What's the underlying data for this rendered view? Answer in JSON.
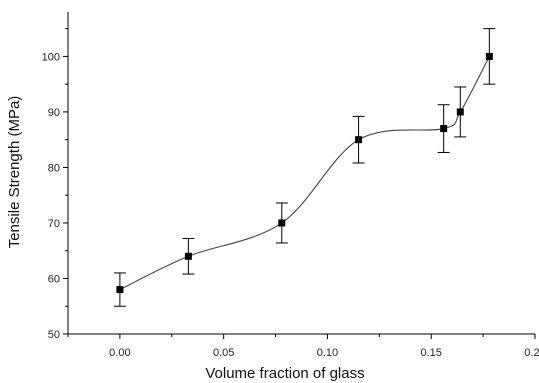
{
  "chart_data": {
    "type": "scatter",
    "title": "",
    "xlabel": "Volume fraction of glass",
    "ylabel": "Tensile Strength (MPa)",
    "xlim": [
      -0.025,
      0.2
    ],
    "ylim": [
      50,
      108
    ],
    "x_ticks": [
      0.0,
      0.05,
      0.1,
      0.15,
      0.2
    ],
    "x_tick_labels": [
      "0.00",
      "0.05",
      "0.10",
      "0.15",
      "0.20"
    ],
    "y_ticks": [
      50,
      60,
      70,
      80,
      90,
      100
    ],
    "y_tick_labels": [
      "50",
      "60",
      "70",
      "80",
      "90",
      "100"
    ],
    "grid": false,
    "smooth_line": true,
    "series": [
      {
        "x": [
          0.0,
          0.033,
          0.078,
          0.115,
          0.156,
          0.164,
          0.178
        ],
        "y": [
          58,
          64,
          70,
          85,
          87,
          90,
          100
        ],
        "error": [
          3,
          3.2,
          3.6,
          4.2,
          4.3,
          4.5,
          5
        ]
      }
    ],
    "colors": {
      "marker": "#000000",
      "line": "#444444",
      "axis": "#000000"
    }
  }
}
